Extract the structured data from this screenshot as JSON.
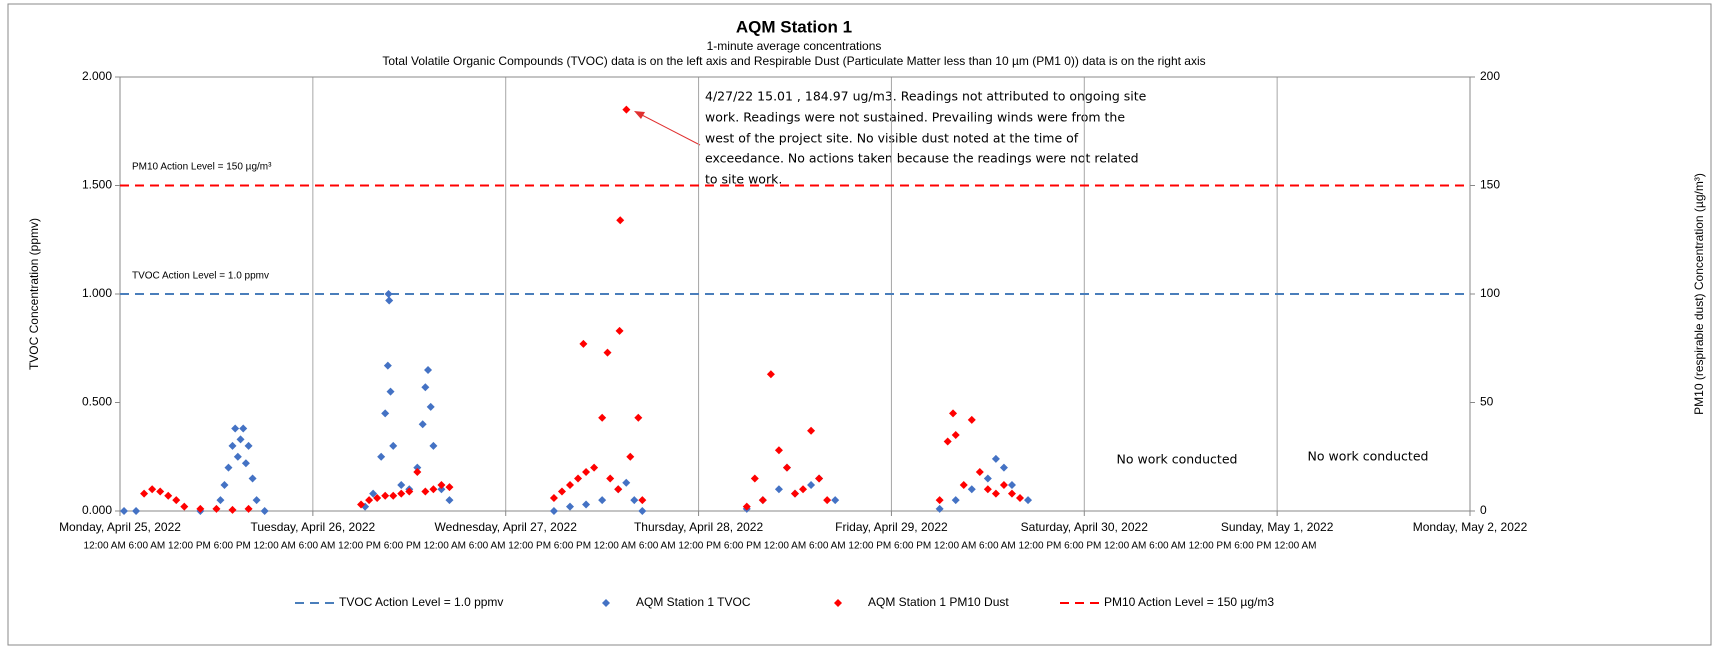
{
  "chart_data": {
    "type": "scatter",
    "title": "AQM Station 1",
    "subtitle": [
      "1-minute average concentrations",
      "Total Volatile Organic Compounds (TVOC) data is on the left axis and Respirable Dust (Particulate Matter less than 10 µm (PM1 0)) data is on the right axis"
    ],
    "ylabel": "TVOC Concentration (ppmv)",
    "y2label": "PM10 (respirable dust) Concentration (µg/m³)",
    "xlim": [
      "2022-04-25T00:00",
      "2022-05-02T00:00"
    ],
    "xticks": [
      {
        "value": "2022-04-25T00:00",
        "label": "Monday, April 25, 2022"
      },
      {
        "value": "2022-04-26T00:00",
        "label": "Tuesday, April 26, 2022"
      },
      {
        "value": "2022-04-27T00:00",
        "label": "Wednesday, April 27, 2022"
      },
      {
        "value": "2022-04-28T00:00",
        "label": "Thursday, April 28, 2022"
      },
      {
        "value": "2022-04-29T00:00",
        "label": "Friday, April 29, 2022"
      },
      {
        "value": "2022-04-30T00:00",
        "label": "Saturday, April 30, 2022"
      },
      {
        "value": "2022-05-01T00:00",
        "label": "Sunday, May 1, 2022"
      },
      {
        "value": "2022-05-02T00:00",
        "label": "Monday, May 2, 2022"
      }
    ],
    "xtick_hours": "12:00 AM 6:00 AM 12:00 PM 6:00 PM 12:00 AM 6:00 AM 12:00 PM 6:00 PM 12:00 AM 6:00 AM 12:00 PM 6:00 PM 12:00 AM 6:00 AM 12:00 PM 6:00 PM 12:00 AM 6:00 AM 12:00 PM 6:00 PM 12:00 AM 6:00 AM 12:00 PM 6:00 PM 12:00 AM 6:00 AM 12:00 PM 6:00 PM 12:00 AM",
    "ylim": [
      0,
      2
    ],
    "yticks": [
      {
        "value": 0,
        "label": "0.000"
      },
      {
        "value": 0.5,
        "label": "0.500"
      },
      {
        "value": 1,
        "label": "1.000"
      },
      {
        "value": 1.5,
        "label": "1.500"
      },
      {
        "value": 2,
        "label": "2.000"
      }
    ],
    "y2lim": [
      0,
      200
    ],
    "y2ticks": [
      0,
      50,
      100,
      150,
      200
    ],
    "grid": "x",
    "legend": "bottom",
    "series": [
      {
        "name": "TVOC Action Level = 1.0 ppmv",
        "type": "line",
        "dash": true,
        "color": "#4a7ebb",
        "x": [
          "2022-04-25T00:00",
          "2022-05-02T00:00"
        ],
        "values": [
          1.0,
          1.0
        ]
      },
      {
        "name": "AQM Station 1 TVOC",
        "type": "scatter",
        "color": "#4472c4",
        "x": [
          "2022-04-25T00:30",
          "2022-04-25T02:00",
          "2022-04-25T10:00",
          "2022-04-25T12:30",
          "2022-04-25T13:00",
          "2022-04-25T13:30",
          "2022-04-25T14:00",
          "2022-04-25T14:20",
          "2022-04-25T14:40",
          "2022-04-25T15:00",
          "2022-04-25T15:20",
          "2022-04-25T15:40",
          "2022-04-25T16:00",
          "2022-04-25T16:30",
          "2022-04-25T17:00",
          "2022-04-25T18:00",
          "2022-04-26T06:30",
          "2022-04-26T07:30",
          "2022-04-26T08:30",
          "2022-04-26T09:00",
          "2022-04-26T09:20",
          "2022-04-26T09:25",
          "2022-04-26T09:30",
          "2022-04-26T09:40",
          "2022-04-26T10:00",
          "2022-04-26T11:00",
          "2022-04-26T12:00",
          "2022-04-26T13:00",
          "2022-04-26T13:40",
          "2022-04-26T14:00",
          "2022-04-26T14:20",
          "2022-04-26T14:40",
          "2022-04-26T15:00",
          "2022-04-26T16:00",
          "2022-04-26T17:00",
          "2022-04-27T06:00",
          "2022-04-27T08:00",
          "2022-04-27T10:00",
          "2022-04-27T12:00",
          "2022-04-27T14:00",
          "2022-04-27T15:00",
          "2022-04-27T16:00",
          "2022-04-27T17:00",
          "2022-04-28T06:00",
          "2022-04-28T08:00",
          "2022-04-28T10:00",
          "2022-04-28T11:00",
          "2022-04-28T12:00",
          "2022-04-28T14:00",
          "2022-04-28T15:00",
          "2022-04-28T17:00",
          "2022-04-29T06:00",
          "2022-04-29T08:00",
          "2022-04-29T10:00",
          "2022-04-29T12:00",
          "2022-04-29T13:00",
          "2022-04-29T14:00",
          "2022-04-29T15:00",
          "2022-04-29T17:00"
        ],
        "values": [
          0,
          0,
          0,
          0.05,
          0.12,
          0.2,
          0.3,
          0.38,
          0.25,
          0.33,
          0.38,
          0.22,
          0.3,
          0.15,
          0.05,
          0,
          0.02,
          0.08,
          0.25,
          0.45,
          0.67,
          1.0,
          0.97,
          0.55,
          0.3,
          0.12,
          0.1,
          0.2,
          0.4,
          0.57,
          0.65,
          0.48,
          0.3,
          0.1,
          0.05,
          0,
          0.02,
          0.03,
          0.05,
          0.1,
          0.13,
          0.05,
          0,
          0.01,
          0.05,
          0.1,
          0.2,
          0.08,
          0.12,
          0.15,
          0.05,
          0.01,
          0.05,
          0.1,
          0.15,
          0.24,
          0.2,
          0.12,
          0.05
        ]
      },
      {
        "name": "AQM Station 1 PM10 Dust",
        "type": "scatter",
        "axis": "y2",
        "color": "#ff0000",
        "x": [
          "2022-04-25T03:00",
          "2022-04-25T04:00",
          "2022-04-25T05:00",
          "2022-04-25T06:00",
          "2022-04-25T07:00",
          "2022-04-25T08:00",
          "2022-04-25T10:00",
          "2022-04-25T12:00",
          "2022-04-25T14:00",
          "2022-04-25T16:00",
          "2022-04-26T06:00",
          "2022-04-26T07:00",
          "2022-04-26T08:00",
          "2022-04-26T09:00",
          "2022-04-26T10:00",
          "2022-04-26T11:00",
          "2022-04-26T12:00",
          "2022-04-26T13:00",
          "2022-04-26T14:00",
          "2022-04-26T15:00",
          "2022-04-26T16:00",
          "2022-04-26T17:00",
          "2022-04-27T06:00",
          "2022-04-27T07:00",
          "2022-04-27T08:00",
          "2022-04-27T09:00",
          "2022-04-27T09:40",
          "2022-04-27T10:00",
          "2022-04-27T11:00",
          "2022-04-27T12:00",
          "2022-04-27T12:40",
          "2022-04-27T13:00",
          "2022-04-27T14:00",
          "2022-04-27T14:10",
          "2022-04-27T14:15",
          "2022-04-27T15:01",
          "2022-04-27T15:30",
          "2022-04-27T16:30",
          "2022-04-27T17:00",
          "2022-04-28T06:00",
          "2022-04-28T07:00",
          "2022-04-28T08:00",
          "2022-04-28T09:00",
          "2022-04-28T10:00",
          "2022-04-28T11:00",
          "2022-04-28T12:00",
          "2022-04-28T13:00",
          "2022-04-28T14:00",
          "2022-04-28T15:00",
          "2022-04-28T16:00",
          "2022-04-29T06:00",
          "2022-04-29T07:00",
          "2022-04-29T07:40",
          "2022-04-29T08:00",
          "2022-04-29T09:00",
          "2022-04-29T10:00",
          "2022-04-29T11:00",
          "2022-04-29T12:00",
          "2022-04-29T13:00",
          "2022-04-29T14:00",
          "2022-04-29T15:00",
          "2022-04-29T16:00"
        ],
        "values": [
          8,
          10,
          9,
          7,
          5,
          2,
          1,
          1,
          0.5,
          1,
          3,
          5,
          6,
          7,
          7,
          8,
          9,
          18,
          9,
          10,
          12,
          11,
          6,
          9,
          12,
          15,
          77,
          18,
          20,
          43,
          73,
          15,
          10,
          83,
          134,
          184.97,
          25,
          43,
          5,
          2,
          15,
          5,
          63,
          28,
          20,
          8,
          10,
          37,
          15,
          5,
          5,
          32,
          45,
          35,
          12,
          42,
          18,
          10,
          8,
          12,
          8,
          6
        ]
      },
      {
        "name": "PM10 Action Level = 150 µg/m3",
        "type": "line",
        "dash": true,
        "axis": "y2",
        "color": "#ff0000",
        "x": [
          "2022-04-25T00:00",
          "2022-05-02T00:00"
        ],
        "values": [
          150,
          150
        ]
      }
    ],
    "annotations": [
      "PM10 Action Level = 150 µg/m³",
      "TVOC Action Level = 1.0 ppmv",
      [
        "4/27/22  15.01 , 184.97 ug/m3. Readings not attributed to ongoing site",
        "work. Readings were not sustained. Prevailing winds were from the",
        "west of the project site. No visible dust noted at the time of",
        "exceedance.  No actions taken because the readings were not related",
        "to site work."
      ],
      "No work conducted",
      "No work conducted"
    ]
  }
}
